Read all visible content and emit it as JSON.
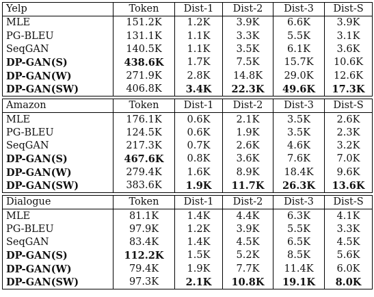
{
  "columns": [
    "Token",
    "Dist-1",
    "Dist-2",
    "Dist-3",
    "Dist-S"
  ],
  "sections": [
    {
      "name": "Yelp",
      "rows": [
        {
          "model": "MLE",
          "values": [
            "151.2K",
            "1.2K",
            "3.9K",
            "6.6K",
            "3.9K"
          ]
        },
        {
          "model": "PG-BLEU",
          "values": [
            "131.1K",
            "1.1K",
            "3.3K",
            "5.5K",
            "3.1K"
          ]
        },
        {
          "model": "SeqGAN",
          "values": [
            "140.5K",
            "1.1K",
            "3.5K",
            "6.1K",
            "3.6K"
          ]
        },
        {
          "model": "DP-GAN(S)",
          "values": [
            "438.6K",
            "1.7K",
            "7.5K",
            "15.7K",
            "10.6K"
          ]
        },
        {
          "model": "DP-GAN(W)",
          "values": [
            "271.9K",
            "2.8K",
            "14.8K",
            "29.0K",
            "12.6K"
          ]
        },
        {
          "model": "DP-GAN(SW)",
          "values": [
            "406.8K",
            "3.4K",
            "22.3K",
            "49.6K",
            "17.3K"
          ]
        }
      ]
    },
    {
      "name": "Amazon",
      "rows": [
        {
          "model": "MLE",
          "values": [
            "176.1K",
            "0.6K",
            "2.1K",
            "3.5K",
            "2.6K"
          ]
        },
        {
          "model": "PG-BLEU",
          "values": [
            "124.5K",
            "0.6K",
            "1.9K",
            "3.5K",
            "2.3K"
          ]
        },
        {
          "model": "SeqGAN",
          "values": [
            "217.3K",
            "0.7K",
            "2.6K",
            "4.6K",
            "3.2K"
          ]
        },
        {
          "model": "DP-GAN(S)",
          "values": [
            "467.6K",
            "0.8K",
            "3.6K",
            "7.6K",
            "7.0K"
          ]
        },
        {
          "model": "DP-GAN(W)",
          "values": [
            "279.4K",
            "1.6K",
            "8.9K",
            "18.4K",
            "9.6K"
          ]
        },
        {
          "model": "DP-GAN(SW)",
          "values": [
            "383.6K",
            "1.9K",
            "11.7K",
            "26.3K",
            "13.6K"
          ]
        }
      ]
    },
    {
      "name": "Dialogue",
      "rows": [
        {
          "model": "MLE",
          "values": [
            "81.1K",
            "1.4K",
            "4.4K",
            "6.3K",
            "4.1K"
          ]
        },
        {
          "model": "PG-BLEU",
          "values": [
            "97.9K",
            "1.2K",
            "3.9K",
            "5.5K",
            "3.3K"
          ]
        },
        {
          "model": "SeqGAN",
          "values": [
            "83.4K",
            "1.4K",
            "4.5K",
            "6.5K",
            "4.5K"
          ]
        },
        {
          "model": "DP-GAN(S)",
          "values": [
            "112.2K",
            "1.5K",
            "5.2K",
            "8.5K",
            "5.6K"
          ]
        },
        {
          "model": "DP-GAN(W)",
          "values": [
            "79.4K",
            "1.9K",
            "7.7K",
            "11.4K",
            "6.0K"
          ]
        },
        {
          "model": "DP-GAN(SW)",
          "values": [
            "97.3K",
            "2.1K",
            "10.8K",
            "19.1K",
            "8.0K"
          ]
        }
      ]
    }
  ]
}
